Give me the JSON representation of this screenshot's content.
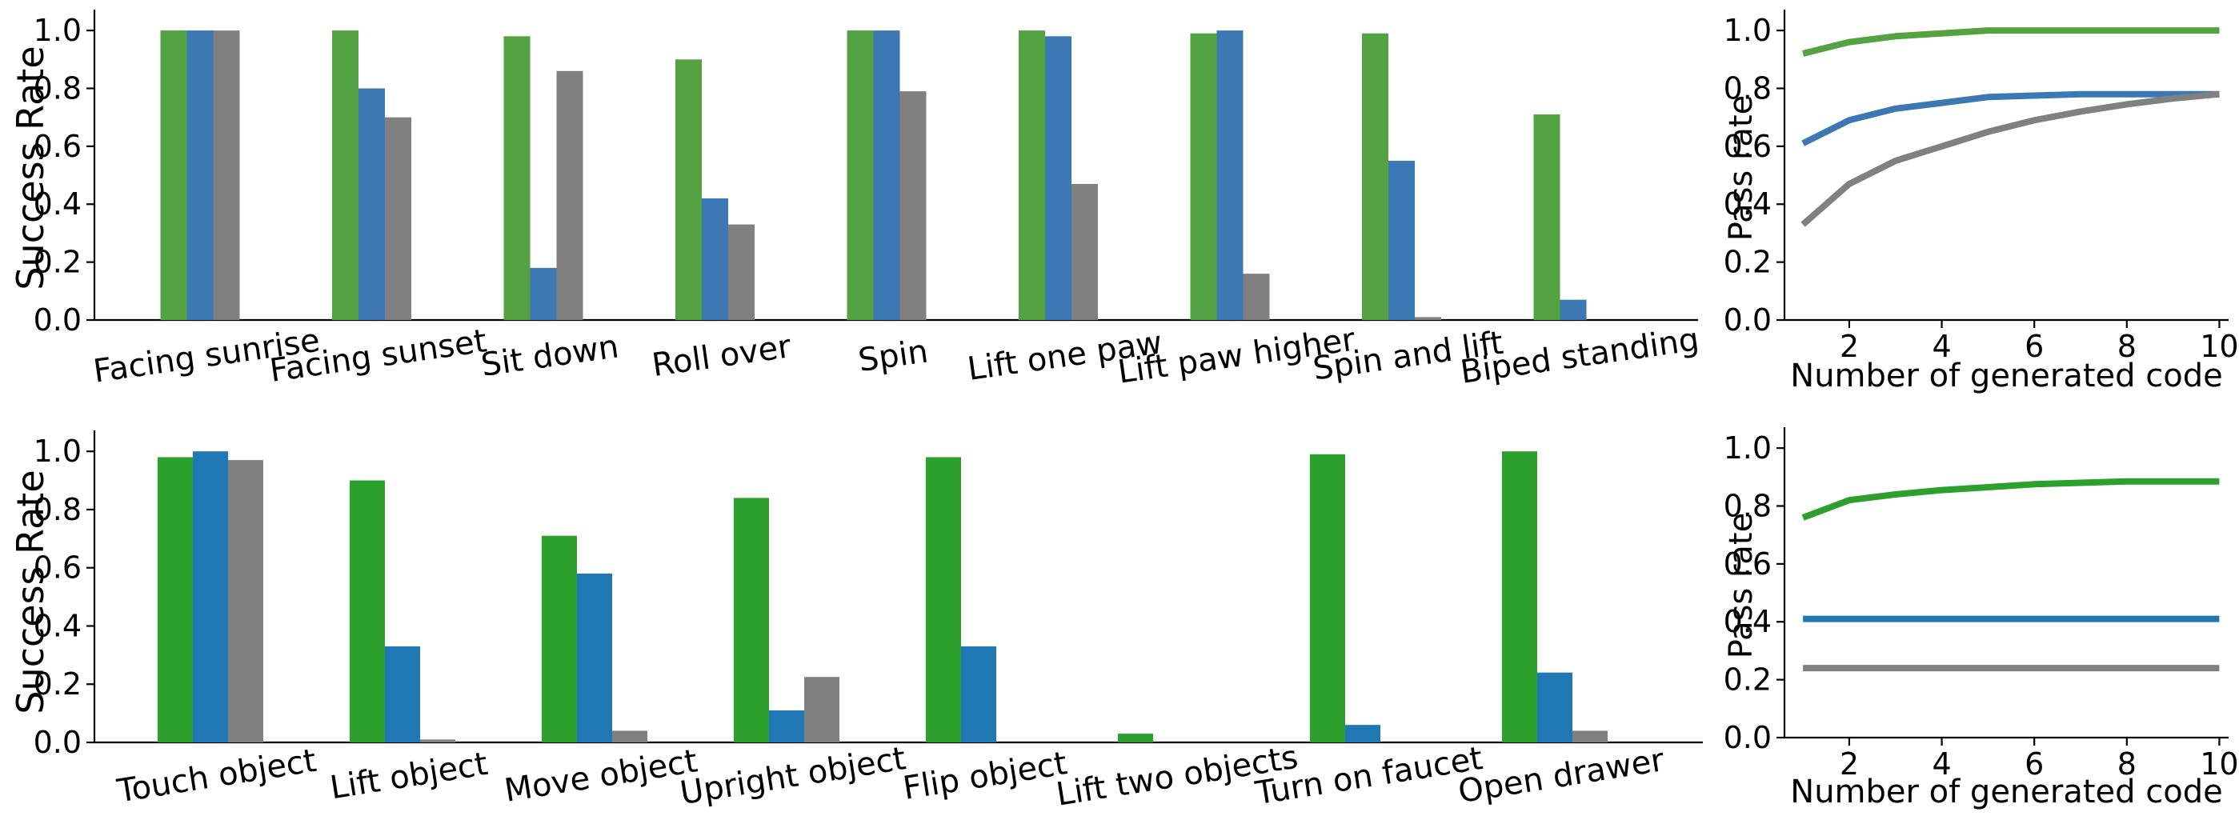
{
  "colors": {
    "green_top": "#54a242",
    "blue_top": "#3b78b4",
    "gray_top": "#808080",
    "green_bottom": "#2ca02c",
    "blue_bottom": "#1f77b4",
    "gray_bottom": "#808080"
  },
  "chart_data": [
    {
      "type": "bar",
      "ylabel": "Success Rate",
      "xlabel": "",
      "ylim": [
        0,
        1.05
      ],
      "yticks": [
        "0.0",
        "0.2",
        "0.4",
        "0.6",
        "0.8",
        "1.0"
      ],
      "categories": [
        "Facing sunrise",
        "Facing sunset",
        "Sit down",
        "Roll over",
        "Spin",
        "Lift one paw",
        "Lift paw higher",
        "Spin and lift",
        "Biped standing"
      ],
      "series": [
        {
          "values": [
            1.0,
            1.0,
            0.98,
            0.9,
            1.0,
            1.0,
            0.99,
            0.99,
            0.71
          ]
        },
        {
          "values": [
            1.0,
            0.8,
            0.18,
            0.42,
            1.0,
            0.98,
            1.0,
            0.55,
            0.07
          ]
        },
        {
          "values": [
            1.0,
            0.7,
            0.86,
            0.33,
            0.79,
            0.47,
            0.16,
            0.01,
            0.0
          ]
        }
      ]
    },
    {
      "type": "line",
      "ylabel": "Pass rate",
      "xlabel": "Number of generated code",
      "ylim": [
        0,
        1.05
      ],
      "xlim": [
        0.6,
        10.2
      ],
      "yticks": [
        "0.0",
        "0.2",
        "0.4",
        "0.6",
        "0.8",
        "1.0"
      ],
      "xticks": [
        "2",
        "4",
        "6",
        "8",
        "10"
      ],
      "x": [
        1,
        2,
        3,
        4,
        5,
        6,
        7,
        8,
        9,
        10
      ],
      "series": [
        {
          "values": [
            0.92,
            0.96,
            0.98,
            0.99,
            1.0,
            1.0,
            1.0,
            1.0,
            1.0,
            1.0
          ]
        },
        {
          "values": [
            0.61,
            0.69,
            0.73,
            0.75,
            0.77,
            0.775,
            0.78,
            0.78,
            0.78,
            0.78
          ]
        },
        {
          "values": [
            0.33,
            0.47,
            0.55,
            0.6,
            0.65,
            0.69,
            0.72,
            0.745,
            0.765,
            0.78
          ]
        }
      ]
    },
    {
      "type": "bar",
      "ylabel": "Success Rate",
      "xlabel": "",
      "ylim": [
        0,
        1.05
      ],
      "yticks": [
        "0.0",
        "0.2",
        "0.4",
        "0.6",
        "0.8",
        "1.0"
      ],
      "categories": [
        "Touch object",
        "Lift object",
        "Move object",
        "Upright object",
        "Flip object",
        "Lift two objects",
        "Turn on faucet",
        "Open drawer"
      ],
      "series": [
        {
          "values": [
            0.98,
            0.9,
            0.71,
            0.84,
            0.98,
            0.03,
            0.99,
            1.0
          ]
        },
        {
          "values": [
            1.0,
            0.33,
            0.58,
            0.11,
            0.33,
            0.0,
            0.06,
            0.24
          ]
        },
        {
          "values": [
            0.97,
            0.01,
            0.04,
            0.225,
            0.0,
            0.0,
            0.0,
            0.04
          ]
        }
      ]
    },
    {
      "type": "line",
      "ylabel": "Pass rate",
      "xlabel": "Number of generated code",
      "ylim": [
        0,
        1.05
      ],
      "xlim": [
        0.6,
        10.2
      ],
      "yticks": [
        "0.0",
        "0.2",
        "0.4",
        "0.6",
        "0.8",
        "1.0"
      ],
      "xticks": [
        "2",
        "4",
        "6",
        "8",
        "10"
      ],
      "x": [
        1,
        2,
        3,
        4,
        5,
        6,
        7,
        8,
        9,
        10
      ],
      "series": [
        {
          "values": [
            0.76,
            0.82,
            0.84,
            0.855,
            0.865,
            0.875,
            0.88,
            0.885,
            0.885,
            0.885
          ]
        },
        {
          "values": [
            0.41,
            0.41,
            0.41,
            0.41,
            0.41,
            0.41,
            0.41,
            0.41,
            0.41,
            0.41
          ]
        },
        {
          "values": [
            0.24,
            0.24,
            0.24,
            0.24,
            0.24,
            0.24,
            0.24,
            0.24,
            0.24,
            0.24
          ]
        }
      ]
    }
  ]
}
